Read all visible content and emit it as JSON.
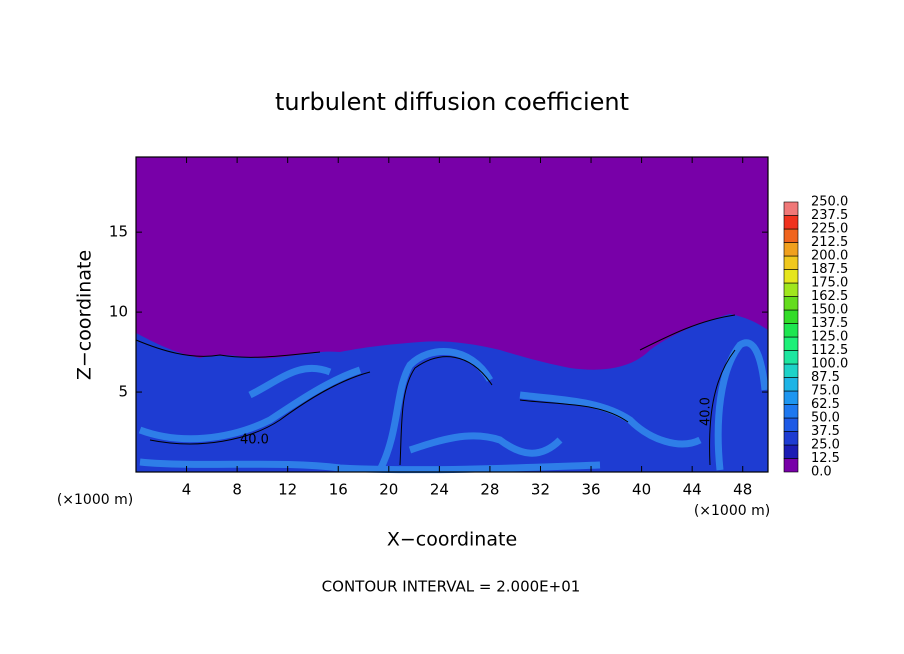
{
  "chart_data": {
    "type": "contour",
    "title": "turbulent diffusion coefficient",
    "x_label": "X−coordinate",
    "y_label": "Z−coordinate",
    "x_unit_label": "(×1000 m)",
    "y_unit_label": "(×1000 m)",
    "annotation": "CONTOUR INTERVAL = 2.000E+01",
    "contour_labels": [
      "40.0",
      "40.0"
    ],
    "xlim": [
      0,
      50
    ],
    "xticks": [
      4,
      8,
      12,
      16,
      20,
      24,
      28,
      32,
      36,
      40,
      44,
      48
    ],
    "ylim": [
      0,
      19.7
    ],
    "yticks": [
      5,
      10,
      15
    ],
    "colorbar": {
      "lim": [
        0,
        250
      ],
      "ticks": [
        {
          "value": 0,
          "label": "0.0"
        },
        12.5,
        {
          "value": 25,
          "label": "25.0"
        },
        37.5,
        {
          "value": 50,
          "label": "50.0"
        },
        62.5,
        {
          "value": 75,
          "label": "75.0"
        },
        87.5,
        {
          "value": 100,
          "label": "100.0"
        },
        112.5,
        {
          "value": 125,
          "label": "125.0"
        },
        137.5,
        {
          "value": 150,
          "label": "150.0"
        },
        162.5,
        {
          "value": 175,
          "label": "175.0"
        },
        187.5,
        {
          "value": 200,
          "label": "200.0"
        },
        212.5,
        {
          "value": 225,
          "label": "225.0"
        },
        237.5,
        {
          "value": 250,
          "label": "250.0"
        }
      ],
      "colors": [
        "#7800a8",
        "#1c1cb4",
        "#1e3cd2",
        "#1e5ae6",
        "#1e78f0",
        "#1e96f0",
        "#1eb4e6",
        "#1ed2c8",
        "#1ee6a0",
        "#1ef078",
        "#1ee650",
        "#32dc28",
        "#64dc1e",
        "#a0e61e",
        "#e6e61e",
        "#f0c81e",
        "#f0a01e",
        "#f0641e",
        "#f0321e",
        "#f07878"
      ]
    }
  }
}
